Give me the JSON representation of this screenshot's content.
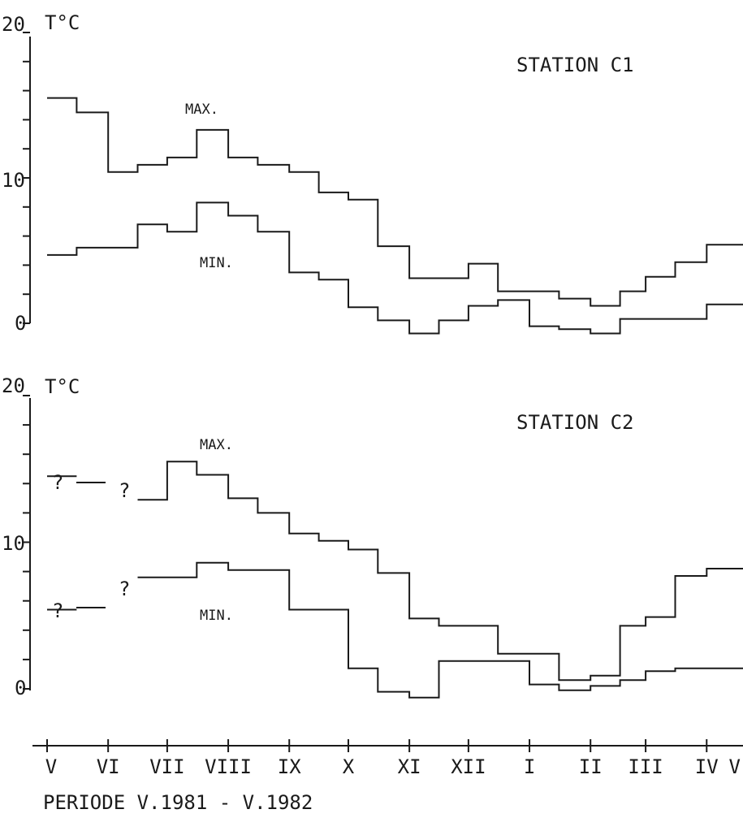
{
  "chart_data": [
    {
      "type": "line",
      "title": "STATION C1",
      "ylabel": "T°C",
      "ylim": [
        0,
        20
      ],
      "ytick_labels": [
        "20",
        "10",
        "0"
      ],
      "grid": false,
      "legend": "none",
      "series": [
        {
          "name": "MAX.",
          "x": [
            "1981-05-01",
            "1981-05-16",
            "1981-06-01",
            "1981-06-16",
            "1981-07-01",
            "1981-07-16",
            "1981-08-01",
            "1981-08-16",
            "1981-09-01",
            "1981-09-16",
            "1981-10-01",
            "1981-10-16",
            "1981-11-01",
            "1981-11-16",
            "1981-12-01",
            "1981-12-16",
            "1982-01-01",
            "1982-01-16",
            "1982-02-01",
            "1982-02-16",
            "1982-03-01",
            "1982-03-16",
            "1982-04-01",
            "1982-04-16",
            "1982-05-01"
          ],
          "values": [
            15.5,
            14.5,
            10.4,
            10.9,
            11.4,
            13.3,
            11.4,
            10.9,
            10.4,
            9.0,
            8.5,
            5.3,
            3.1,
            3.1,
            4.1,
            2.2,
            2.2,
            1.7,
            1.2,
            2.2,
            3.2,
            4.2,
            5.4,
            5.4,
            5.4
          ]
        },
        {
          "name": "MIN.",
          "x": [
            "1981-05-01",
            "1981-05-16",
            "1981-06-01",
            "1981-06-16",
            "1981-07-01",
            "1981-07-16",
            "1981-08-01",
            "1981-08-16",
            "1981-09-01",
            "1981-09-16",
            "1981-10-01",
            "1981-10-16",
            "1981-11-01",
            "1981-11-16",
            "1981-12-01",
            "1981-12-16",
            "1982-01-01",
            "1982-01-16",
            "1982-02-01",
            "1982-02-16",
            "1982-03-01",
            "1982-03-16",
            "1982-04-01",
            "1982-04-16",
            "1982-05-01"
          ],
          "values": [
            4.7,
            5.2,
            5.2,
            6.8,
            6.3,
            8.3,
            7.4,
            6.3,
            3.5,
            3.0,
            1.1,
            0.2,
            -0.7,
            0.2,
            1.2,
            1.6,
            -0.2,
            -0.4,
            -0.7,
            0.3,
            0.3,
            0.3,
            1.3,
            1.3,
            1.3
          ]
        }
      ]
    },
    {
      "type": "line",
      "title": "STATION C2",
      "ylabel": "T°C",
      "ylim": [
        0,
        20
      ],
      "ytick_labels": [
        "20",
        "10",
        "0"
      ],
      "grid": false,
      "legend": "none",
      "series": [
        {
          "name": "MAX.",
          "x": [
            "1981-05-01",
            "1981-05-16",
            "1981-06-01",
            "1981-06-16",
            "1981-07-01",
            "1981-07-16",
            "1981-08-01",
            "1981-08-16",
            "1981-09-01",
            "1981-09-16",
            "1981-10-01",
            "1981-10-16",
            "1981-11-01",
            "1981-11-16",
            "1981-12-01",
            "1981-12-16",
            "1982-01-01",
            "1982-01-16",
            "1982-02-01",
            "1982-02-16",
            "1982-03-01",
            "1982-03-16",
            "1982-04-01",
            "1982-04-16",
            "1982-05-01"
          ],
          "values": [
            14.5,
            null,
            null,
            12.9,
            15.5,
            14.6,
            13.0,
            12.0,
            10.6,
            10.1,
            9.5,
            7.9,
            4.8,
            4.3,
            4.3,
            2.4,
            2.4,
            0.6,
            0.9,
            4.3,
            4.9,
            7.7,
            8.2,
            8.2,
            8.2
          ]
        },
        {
          "name": "MIN.",
          "x": [
            "1981-05-01",
            "1981-05-16",
            "1981-06-01",
            "1981-06-16",
            "1981-07-01",
            "1981-07-16",
            "1981-08-01",
            "1981-08-16",
            "1981-09-01",
            "1981-09-16",
            "1981-10-01",
            "1981-10-16",
            "1981-11-01",
            "1981-11-16",
            "1981-12-01",
            "1981-12-16",
            "1982-01-01",
            "1982-01-16",
            "1982-02-01",
            "1982-02-16",
            "1982-03-01",
            "1982-03-16",
            "1982-04-01",
            "1982-04-16",
            "1982-05-01"
          ],
          "values": [
            5.4,
            null,
            null,
            7.6,
            7.6,
            8.6,
            8.1,
            8.1,
            5.4,
            5.4,
            1.4,
            -0.2,
            -0.6,
            1.9,
            1.9,
            1.9,
            0.3,
            -0.1,
            0.2,
            0.6,
            1.2,
            1.4,
            1.4,
            1.4,
            1.4
          ]
        }
      ]
    }
  ],
  "x_axis": {
    "month_labels": [
      "V",
      "VI",
      "VII",
      "VIII",
      "IX",
      "X",
      "XI",
      "XII",
      "I",
      "II",
      "III",
      "IV",
      "V"
    ]
  },
  "footer": "PERIODE V.1981 - V.1982",
  "unknown_mark": "?"
}
